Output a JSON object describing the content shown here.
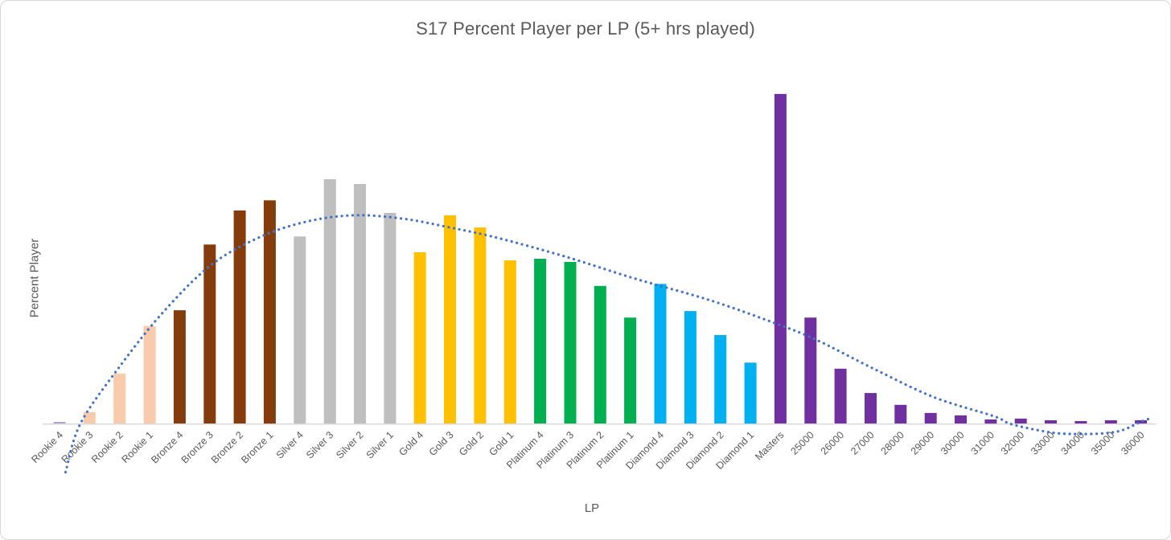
{
  "chart": {
    "title": "S17 Percent Player per LP (5+ hrs played)",
    "x_axis_title": "LP",
    "y_axis_title": "Percent Player"
  },
  "colors": {
    "title_text": "#595959",
    "axis_text": "#595959",
    "axis_line": "#D9D9D9",
    "trendline": "#4472C4",
    "rookie": "#F8CBAD",
    "bronze": "#843C0C",
    "silver": "#BFBFBF",
    "gold": "#FFC000",
    "platinum": "#00B050",
    "diamond": "#00B0F0",
    "masters_plus": "#7030A0"
  },
  "chart_data": {
    "type": "bar",
    "title": "S17 Percent Player per LP (5+ hrs played)",
    "xlabel": "LP",
    "ylabel": "Percent Player",
    "grid": false,
    "legend": false,
    "y_ticks_shown": false,
    "ylim": [
      -1.3,
      9.2
    ],
    "x_label_rotation_deg": -45,
    "categories": [
      "Rookie 4",
      "Rookie 3",
      "Rookie 2",
      "Rookie 1",
      "Bronze 4",
      "Bronze 3",
      "Bronze 2",
      "Bronze 1",
      "Silver 4",
      "Silver 3",
      "Silver 2",
      "Silver 1",
      "Gold 4",
      "Gold 3",
      "Gold 2",
      "Gold 1",
      "Platinum 4",
      "Platinum 3",
      "Platinum 2",
      "Platinum 1",
      "Diamond 4",
      "Diamond 3",
      "Diamond 2",
      "Diamond 1",
      "Masters",
      "25000",
      "26000",
      "27000",
      "28000",
      "29000",
      "30000",
      "31000",
      "32000",
      "33000",
      "34000",
      "35000",
      "36000"
    ],
    "values": [
      0.04,
      0.28,
      1.23,
      2.4,
      2.79,
      4.41,
      5.25,
      5.5,
      4.61,
      6.02,
      5.9,
      5.19,
      4.22,
      5.13,
      4.83,
      4.02,
      4.06,
      3.98,
      3.39,
      2.61,
      3.44,
      2.77,
      2.18,
      1.5,
      8.12,
      2.61,
      1.35,
      0.75,
      0.46,
      0.26,
      0.2,
      0.1,
      0.12,
      0.08,
      0.06,
      0.08,
      0.08
    ],
    "bar_colors": [
      "#B3A2D6",
      "#F8CBAD",
      "#F8CBAD",
      "#F8CBAD",
      "#843C0C",
      "#843C0C",
      "#843C0C",
      "#843C0C",
      "#BFBFBF",
      "#BFBFBF",
      "#BFBFBF",
      "#BFBFBF",
      "#FFC000",
      "#FFC000",
      "#FFC000",
      "#FFC000",
      "#00B050",
      "#00B050",
      "#00B050",
      "#00B050",
      "#00B0F0",
      "#00B0F0",
      "#00B0F0",
      "#00B0F0",
      "#7030A0",
      "#7030A0",
      "#7030A0",
      "#7030A0",
      "#7030A0",
      "#7030A0",
      "#7030A0",
      "#7030A0",
      "#7030A0",
      "#7030A0",
      "#7030A0",
      "#7030A0",
      "#7030A0"
    ],
    "trendline": {
      "type": "polynomial-fit",
      "style": "dotted",
      "color": "#4472C4",
      "points": [
        [
          0.2,
          -1.2
        ],
        [
          0.7,
          0.0
        ],
        [
          2.0,
          1.4
        ],
        [
          3.4,
          2.7
        ],
        [
          5.0,
          3.88
        ],
        [
          6.6,
          4.57
        ],
        [
          8.2,
          4.97
        ],
        [
          9.8,
          5.13
        ],
        [
          11.4,
          5.05
        ],
        [
          13.0,
          4.83
        ],
        [
          14.6,
          4.57
        ],
        [
          16.8,
          4.12
        ],
        [
          19.2,
          3.56
        ],
        [
          21.6,
          3.05
        ],
        [
          23.75,
          2.49
        ],
        [
          25.2,
          2.06
        ],
        [
          27.1,
          1.35
        ],
        [
          29.1,
          0.65
        ],
        [
          31.1,
          0.18
        ],
        [
          31.7,
          -0.02
        ],
        [
          33.0,
          -0.22
        ],
        [
          33.9,
          -0.26
        ],
        [
          34.8,
          -0.24
        ],
        [
          35.4,
          -0.16
        ],
        [
          36.05,
          0.06
        ],
        [
          36.4,
          0.14
        ]
      ]
    }
  }
}
